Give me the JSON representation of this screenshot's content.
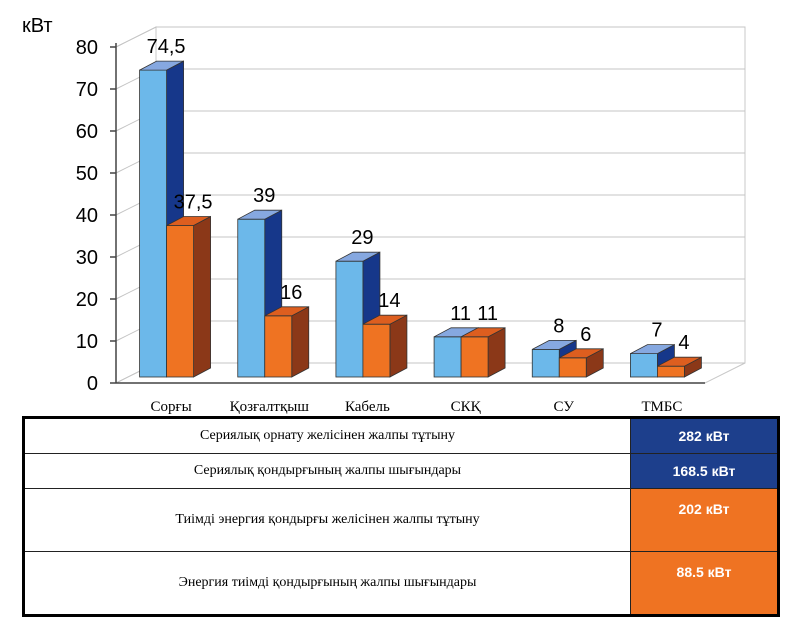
{
  "chart_data": {
    "type": "bar",
    "ylabel": "кВт",
    "ylim": [
      0,
      80
    ],
    "yticks": [
      0,
      10,
      20,
      30,
      40,
      50,
      60,
      70,
      80
    ],
    "categories": [
      "Сорғы",
      "Қозғалтқыш",
      "Кабель",
      "СКҚ",
      "СУ",
      "ТМБС"
    ],
    "series": [
      {
        "name": "Сериялық",
        "values": [
          74.5,
          39,
          29,
          11,
          8,
          7
        ],
        "labels": [
          "74,5",
          "39",
          "29",
          "11",
          "8",
          "7"
        ],
        "color": "#6cb8ea",
        "side_color": "#16378a",
        "top_color": "#86a8e0"
      },
      {
        "name": "Тиімді",
        "values": [
          37.5,
          16,
          14,
          11,
          6,
          4
        ],
        "labels": [
          "37,5",
          "16",
          "14",
          "11",
          "6",
          "4"
        ],
        "color": "#ef7322",
        "side_color": "#8b3818",
        "top_color": "#dd5e1f"
      }
    ]
  },
  "table": {
    "rows": [
      {
        "label": "Сериялық орнату желісінен жалпы тұтыну",
        "value": "282 кВт",
        "color": "#1d3f8c"
      },
      {
        "label": "Сериялық қондырғының жалпы шығындары",
        "value": "168.5 кВт",
        "color": "#1d3f8c"
      },
      {
        "label": "Тиімді энергия қондырғы желісінен жалпы тұтыну",
        "value": "202 кВт",
        "color": "#ef7322"
      },
      {
        "label": "Энергия тиімді қондырғының жалпы шығындары",
        "value": "88.5 кВт",
        "color": "#ef7322"
      }
    ]
  }
}
